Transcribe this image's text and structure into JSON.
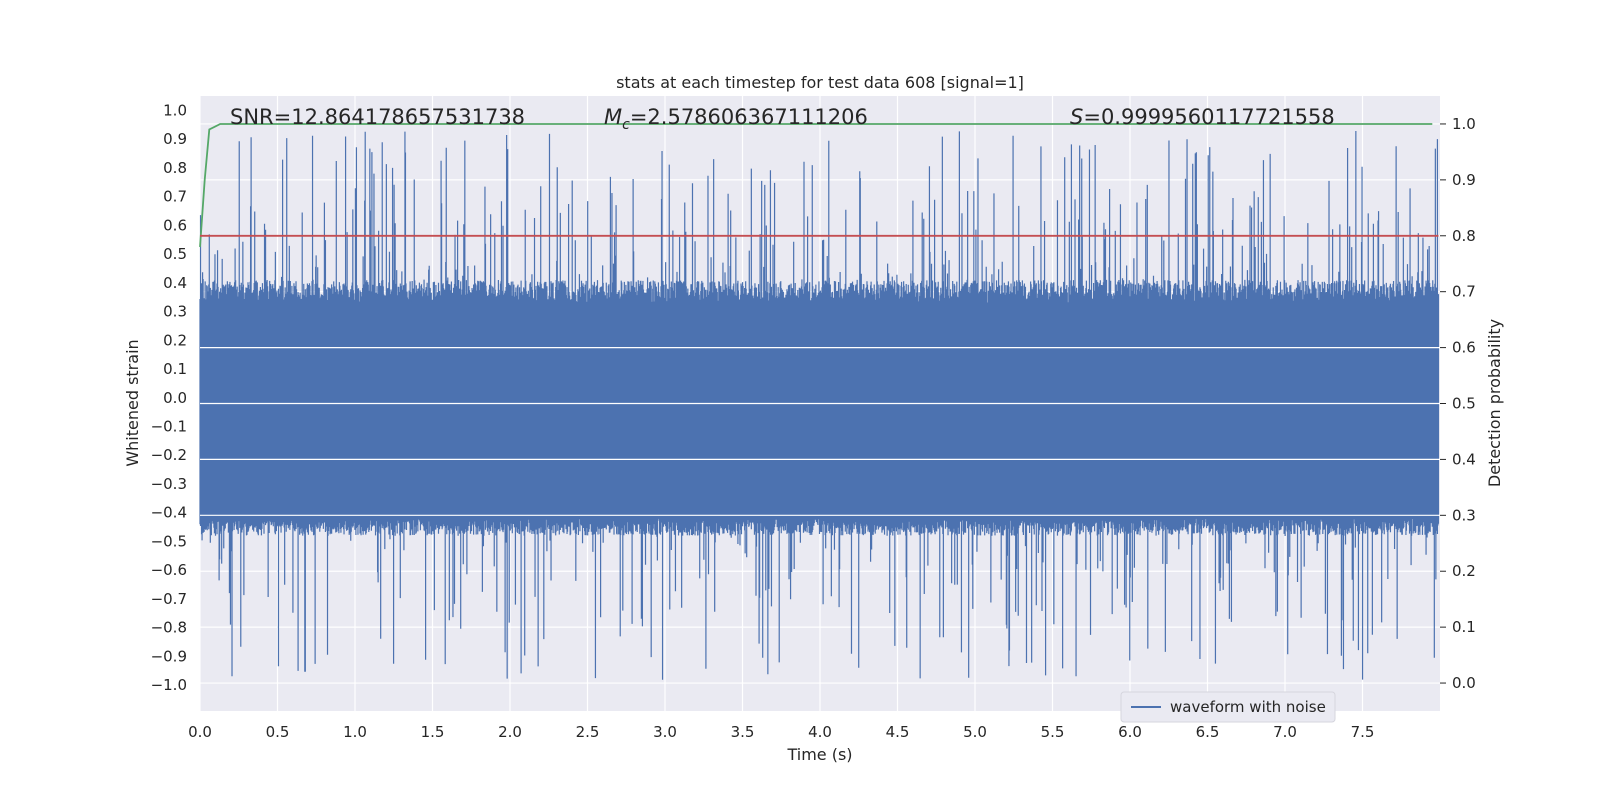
{
  "chart_data": {
    "type": "line",
    "title": "stats at each timestep for test data 608 [signal=1]",
    "xlabel": "Time (s)",
    "ylabel": "Whitened strain",
    "y2label": "Detection probability",
    "xlim": [
      0.0,
      8.0
    ],
    "ylim": [
      -1.09,
      1.05
    ],
    "y2lim": [
      -0.05,
      1.05
    ],
    "xticks": [
      "0.0",
      "0.5",
      "1.0",
      "1.5",
      "2.0",
      "2.5",
      "3.0",
      "3.5",
      "4.0",
      "4.5",
      "5.0",
      "5.5",
      "6.0",
      "6.5",
      "7.0",
      "7.5"
    ],
    "xtick_values": [
      0.0,
      0.5,
      1.0,
      1.5,
      2.0,
      2.5,
      3.0,
      3.5,
      4.0,
      4.5,
      5.0,
      5.5,
      6.0,
      6.5,
      7.0,
      7.5
    ],
    "yticks": [
      "1.0",
      "0.9",
      "0.8",
      "0.7",
      "0.6",
      "0.5",
      "0.4",
      "0.3",
      "0.2",
      "0.1",
      "0.0",
      "−0.1",
      "−0.2",
      "−0.3",
      "−0.4",
      "−0.5",
      "−0.6",
      "−0.7",
      "−0.8",
      "−0.9",
      "−1.0"
    ],
    "ytick_values": [
      1.0,
      0.9,
      0.8,
      0.7,
      0.6,
      0.5,
      0.4,
      0.3,
      0.2,
      0.1,
      0.0,
      -0.1,
      -0.2,
      -0.3,
      -0.4,
      -0.5,
      -0.6,
      -0.7,
      -0.8,
      -0.9,
      -1.0
    ],
    "y2ticks": [
      "1.0",
      "0.9",
      "0.8",
      "0.7",
      "0.6",
      "0.5",
      "0.4",
      "0.3",
      "0.2",
      "0.1",
      "0.0"
    ],
    "y2tick_values": [
      1.0,
      0.9,
      0.8,
      0.7,
      0.6,
      0.5,
      0.4,
      0.3,
      0.2,
      0.1,
      0.0
    ],
    "grid": true,
    "legend_position": "bottom-right",
    "series": [
      {
        "name": "waveform with noise",
        "color": "#4c72b0",
        "kind": "noise",
        "x_range": [
          0.0,
          7.99
        ],
        "band_upper": 0.33,
        "band_lower": -0.42,
        "peak_max": 0.93,
        "peak_min": -0.99
      },
      {
        "color": "#55a868",
        "axis": "y2",
        "x": [
          0.0,
          0.03,
          0.06,
          0.13,
          7.95
        ],
        "y": [
          0.78,
          0.9,
          0.99,
          1.0,
          1.0
        ]
      },
      {
        "color": "#c44e52",
        "axis": "y2",
        "x": [
          0.0,
          7.99
        ],
        "y": [
          0.8,
          0.8
        ]
      }
    ],
    "annotations": {
      "snr": "SNR=12.864178657531738",
      "mc_symbol": "M",
      "mc_subscript": "c",
      "mc_value": "=2.578606367111206",
      "s_symbol": "S",
      "s_value": "=0.9999560117721558"
    }
  }
}
